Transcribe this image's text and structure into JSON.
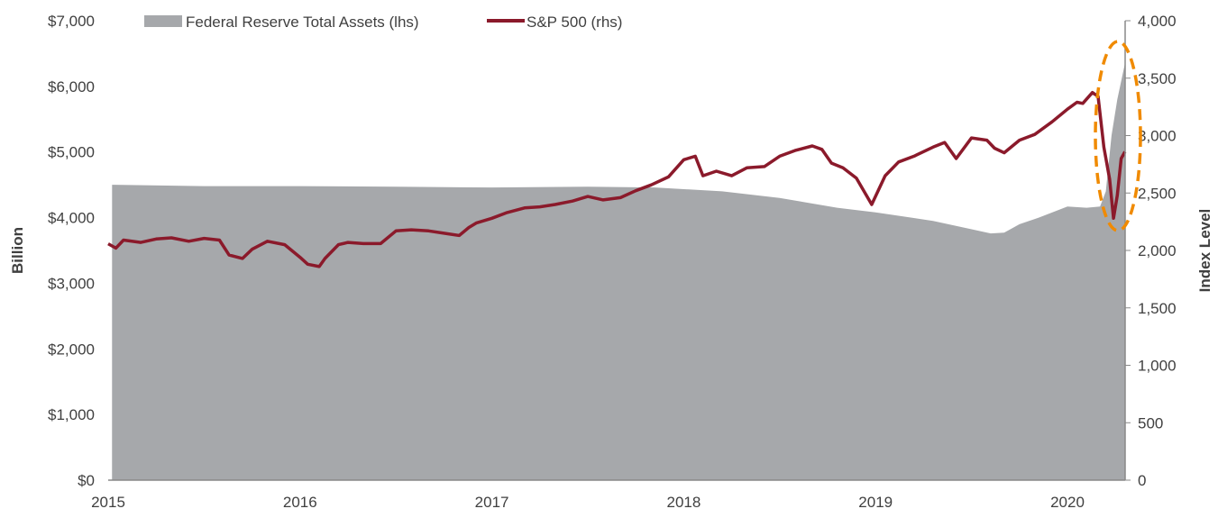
{
  "chart_data": {
    "type": "area+line",
    "title": "",
    "legend": [
      {
        "name": "Federal Reserve Total Assets (lhs)",
        "color": "#a6a8ab",
        "kind": "area"
      },
      {
        "name": "S&P 500 (rhs)",
        "color": "#8b1a2b",
        "kind": "line"
      }
    ],
    "legend_position": "top",
    "ylabel": "Billion",
    "y2label": "Index Level",
    "ylim": [
      0,
      7000
    ],
    "y2lim": [
      0,
      4000
    ],
    "xlim": [
      2015,
      2020.3
    ],
    "yticks": [
      "$0",
      "$1,000",
      "$2,000",
      "$3,000",
      "$4,000",
      "$5,000",
      "$6,000",
      "$7,000"
    ],
    "y2ticks": [
      "0",
      "500",
      "1,000",
      "1,500",
      "2,000",
      "2,500",
      "3,000",
      "3,500",
      "4,000"
    ],
    "xticks": [
      "2015",
      "2016",
      "2017",
      "2018",
      "2019",
      "2020"
    ],
    "annotation": "dashed orange ellipse highlighting March-April 2020",
    "series": [
      {
        "name": "Federal Reserve Total Assets (lhs)",
        "x": [
          2015.02,
          2015.5,
          2016,
          2016.5,
          2017,
          2017.5,
          2017.85,
          2018.2,
          2018.5,
          2018.8,
          2019.0,
          2019.3,
          2019.6,
          2019.67,
          2019.75,
          2019.85,
          2020.0,
          2020.1,
          2020.17,
          2020.2,
          2020.23,
          2020.26,
          2020.3
        ],
        "values": [
          4500,
          4480,
          4480,
          4470,
          4460,
          4470,
          4460,
          4400,
          4300,
          4150,
          4080,
          3950,
          3760,
          3770,
          3900,
          4000,
          4170,
          4150,
          4170,
          4400,
          5250,
          5800,
          6350
        ]
      },
      {
        "name": "S&P 500 (rhs)",
        "x": [
          2015,
          2015.04,
          2015.08,
          2015.17,
          2015.25,
          2015.33,
          2015.42,
          2015.5,
          2015.58,
          2015.63,
          2015.7,
          2015.75,
          2015.83,
          2015.92,
          2016,
          2016.04,
          2016.1,
          2016.13,
          2016.2,
          2016.25,
          2016.33,
          2016.42,
          2016.5,
          2016.58,
          2016.67,
          2016.75,
          2016.83,
          2016.88,
          2016.92,
          2017,
          2017.08,
          2017.17,
          2017.25,
          2017.33,
          2017.42,
          2017.5,
          2017.58,
          2017.67,
          2017.75,
          2017.83,
          2017.92,
          2018,
          2018.06,
          2018.1,
          2018.17,
          2018.25,
          2018.33,
          2018.42,
          2018.5,
          2018.58,
          2018.67,
          2018.72,
          2018.77,
          2018.83,
          2018.9,
          2018.98,
          2019.05,
          2019.12,
          2019.2,
          2019.3,
          2019.36,
          2019.42,
          2019.5,
          2019.58,
          2019.62,
          2019.67,
          2019.75,
          2019.83,
          2019.92,
          2020,
          2020.05,
          2020.08,
          2020.13,
          2020.16,
          2020.19,
          2020.22,
          2020.24,
          2020.26,
          2020.28,
          2020.3
        ],
        "values": [
          2058,
          2020,
          2090,
          2070,
          2100,
          2110,
          2080,
          2105,
          2090,
          1960,
          1930,
          2010,
          2080,
          2050,
          1940,
          1880,
          1860,
          1930,
          2050,
          2070,
          2060,
          2060,
          2170,
          2180,
          2170,
          2150,
          2130,
          2200,
          2240,
          2280,
          2330,
          2370,
          2380,
          2400,
          2430,
          2470,
          2440,
          2460,
          2520,
          2570,
          2640,
          2790,
          2820,
          2650,
          2690,
          2650,
          2720,
          2730,
          2820,
          2870,
          2910,
          2880,
          2760,
          2720,
          2630,
          2400,
          2650,
          2770,
          2820,
          2900,
          2940,
          2800,
          2980,
          2960,
          2890,
          2850,
          2960,
          3010,
          3120,
          3230,
          3290,
          3280,
          3375,
          3340,
          2900,
          2620,
          2280,
          2480,
          2800,
          2860
        ]
      }
    ]
  }
}
